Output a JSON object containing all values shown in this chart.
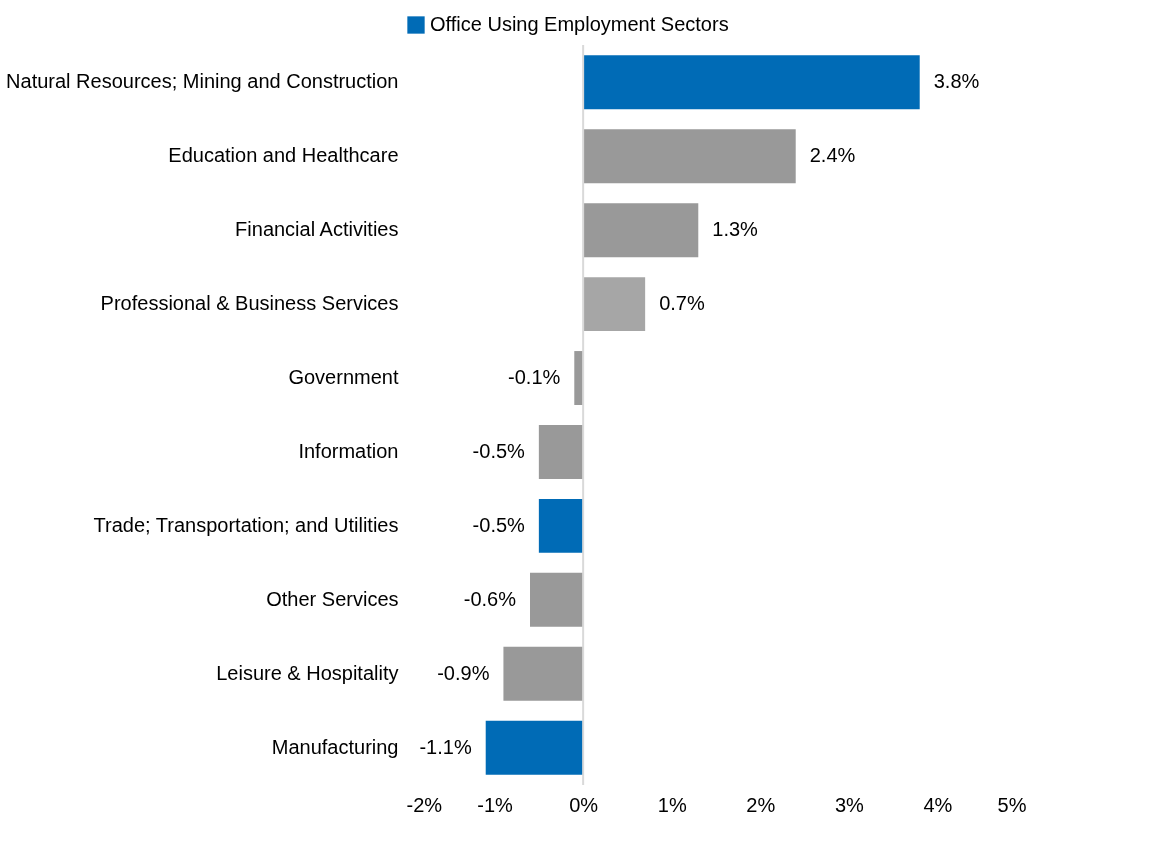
{
  "chart_data": {
    "type": "bar",
    "orientation": "horizontal",
    "categories": [
      "Natural Resources; Mining and Construction",
      "Education and Healthcare",
      "Financial Activities",
      "Professional & Business Services",
      "Government",
      "Information",
      "Trade; Transportation; and Utilities",
      "Other Services",
      "Leisure & Hospitality",
      "Manufacturing"
    ],
    "series": [
      {
        "name": "Office Using Employment Sectors",
        "color": "#006bb6",
        "values": [
          3.8,
          null,
          null,
          null,
          null,
          null,
          -0.5,
          null,
          null,
          -1.1
        ],
        "value_labels": [
          "3.8%",
          null,
          null,
          null,
          null,
          null,
          "-0.5%",
          null,
          null,
          "-1.1%"
        ]
      },
      {
        "color": "#999999",
        "colors": [
          null,
          "#999999",
          "#999999",
          "#a6a6a6",
          "#999999",
          "#999999",
          null,
          "#999999",
          "#999999",
          null
        ],
        "values": [
          null,
          2.4,
          1.3,
          0.7,
          -0.1,
          -0.5,
          null,
          -0.6,
          -0.9,
          null
        ],
        "value_labels": [
          null,
          "2.4%",
          "1.3%",
          "0.7%",
          "-0.1%",
          "-0.5%",
          null,
          "-0.6%",
          "-0.9%",
          null
        ]
      }
    ],
    "xlim": [
      -2,
      5
    ],
    "xticks": [
      {
        "value": -2,
        "label": "-2%"
      },
      {
        "value": -1,
        "label": "-1%"
      },
      {
        "value": 0,
        "label": "0%"
      },
      {
        "value": 1,
        "label": "1%"
      },
      {
        "value": 2,
        "label": "2%"
      },
      {
        "value": 3,
        "label": "3%"
      },
      {
        "value": 4,
        "label": "4%"
      },
      {
        "value": 5,
        "label": "5%"
      }
    ],
    "ref_lines": [
      {
        "axis": "x",
        "value": 0,
        "color": "#d9d9d9"
      }
    ],
    "grid": false,
    "legend": "top"
  }
}
